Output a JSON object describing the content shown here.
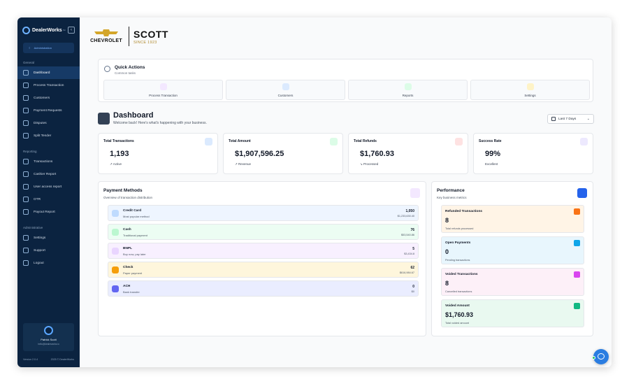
{
  "sidebar": {
    "brand": "DealerWorks",
    "brand_tm": "™",
    "admin_label": "Administration",
    "sections": {
      "general": "General",
      "reporting": "Reporting",
      "administrative": "Administrative"
    },
    "general_items": [
      "Dashboard",
      "Process Transaction",
      "Customers",
      "Payment Requests",
      "Disputes",
      "Split Tender"
    ],
    "reporting_items": [
      "Transactions",
      "Cashier Report",
      "User access report",
      "OTR",
      "Payout Report"
    ],
    "admin_items": [
      "Settings",
      "Support",
      "Logout"
    ],
    "user_name": "Patrick Scott",
    "user_email": "hello@dealerworks.io",
    "version": "Version 2.0.4",
    "copyright": "2025 © DealerWorks"
  },
  "dealer": {
    "brand": "CHEVROLET",
    "name": "SCOTT",
    "since": "SINCE 1923"
  },
  "quick_actions": {
    "title": "Quick Actions",
    "subtitle": "Common tasks",
    "tiles": [
      "Process Transaction",
      "Customers",
      "Reports",
      "Settings"
    ]
  },
  "dashboard": {
    "title": "Dashboard",
    "subtitle": "Welcome back! Here's what's happening with your business.",
    "range": "Last 7 Days"
  },
  "stats": [
    {
      "title": "Total Transactions",
      "value": "1,193",
      "label": "↗ Active"
    },
    {
      "title": "Total Amount",
      "value": "$1,907,596.25",
      "label": "↗ Revenue"
    },
    {
      "title": "Total Refunds",
      "value": "$1,760.93",
      "label": "↘ Processed"
    },
    {
      "title": "Success Rate",
      "value": "99%",
      "label": "Excellent"
    }
  ],
  "payment_methods": {
    "title": "Payment Methods",
    "subtitle": "Overview of transaction distribution",
    "rows": [
      {
        "name": "Credit Card",
        "desc": "Most popular method",
        "count": "1,050",
        "amount": "$1,233,630.40"
      },
      {
        "name": "Cash",
        "desc": "Traditional payment",
        "count": "76",
        "amount": "$53,540.86"
      },
      {
        "name": "BNPL",
        "desc": "Buy now, pay later",
        "count": "5",
        "amount": "$3,434.8"
      },
      {
        "name": "Check",
        "desc": "Paper payment",
        "count": "62",
        "amount": "$616,984.67"
      },
      {
        "name": "ACH",
        "desc": "Bank transfer",
        "count": "0",
        "amount": "$0"
      }
    ]
  },
  "performance": {
    "title": "Performance",
    "subtitle": "Key business metrics",
    "cards": [
      {
        "title": "Refunded Transactions",
        "value": "8",
        "label": "Total refunds processed"
      },
      {
        "title": "Open Payments",
        "value": "0",
        "label": "Pending transactions"
      },
      {
        "title": "Voided Transactions",
        "value": "8",
        "label": "Cancelled transactions"
      },
      {
        "title": "Voided Amount",
        "value": "$1,760.93",
        "label": "Total voided amount"
      }
    ]
  },
  "colors": {
    "sidebar_bg": "#0b2340",
    "accent": "#2563eb",
    "credit": "#dbeafe",
    "cash": "#dcfce7",
    "bnpl": "#f3e8ff",
    "check": "#fef3c7",
    "ach": "#e0e7ff"
  }
}
